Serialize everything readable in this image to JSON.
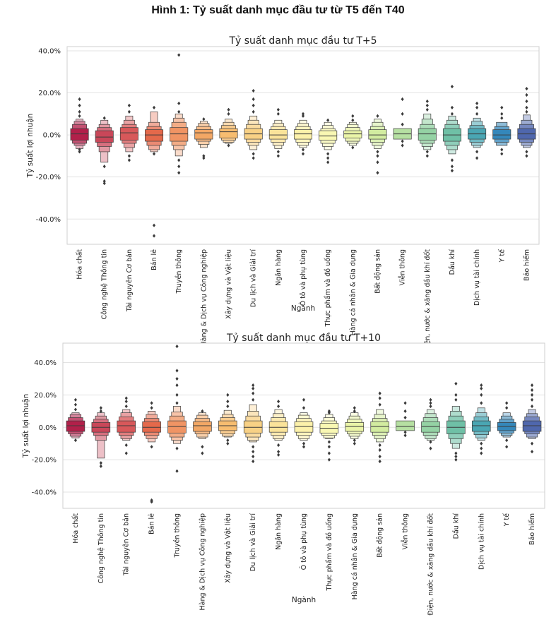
{
  "figure_title": "Hình 1: Tỷ suất danh mục đầu tư từ T5 đến T40",
  "chart_data": [
    {
      "type": "boxen",
      "title": "Tỷ suất danh mục đầu tư T+5",
      "xlabel": "Ngành",
      "ylabel": "Tỷ suất lợi nhuận",
      "ylim": [
        -52,
        42
      ],
      "yticks": [
        -40,
        -20,
        0,
        20,
        40
      ],
      "ytick_labels": [
        "-40.0%",
        "-20.0%",
        "0.0%",
        "20.0%",
        "40.0%"
      ],
      "grid": true,
      "categories": [
        "Hóa chất",
        "Công nghệ Thông tin",
        "Tài nguyên Cơ bản",
        "Bán lẻ",
        "Truyền thông",
        "Hàng & Dịch vụ Công nghiệp",
        "Xây dựng và Vật liệu",
        "Du lịch và Giải trí",
        "Ngân hàng",
        "Ô tô và phụ tùng",
        "Thực phẩm và đồ uống",
        "Hàng cá nhân & Gia dụng",
        "Bất động sản",
        "Viễn thông",
        "Điện, nước & xăng dầu khí đốt",
        "Dầu khí",
        "Dịch vụ tài chính",
        "Y tế",
        "Bảo hiểm"
      ],
      "colors": [
        "#b2204a",
        "#c94759",
        "#d8585a",
        "#e4694b",
        "#f09464",
        "#f3a765",
        "#f7bd70",
        "#f8d185",
        "#fae39a",
        "#fcf1aa",
        "#f9f8b3",
        "#eaf4a7",
        "#d2eca0",
        "#b6e0a2",
        "#94d2a4",
        "#6fc0a6",
        "#4aa6b3",
        "#3487ba",
        "#4f67ad"
      ],
      "stats": [
        {
          "median": 0.5,
          "levels": [
            [
              -2.5,
              3
            ],
            [
              -4,
              5
            ],
            [
              -5,
              6.5
            ],
            [
              -6.5,
              7.5
            ]
          ],
          "outliers": [
            -8,
            -7,
            9,
            11,
            14,
            17
          ]
        },
        {
          "median": -1,
          "levels": [
            [
              -3.5,
              2
            ],
            [
              -5.5,
              3.5
            ],
            [
              -8,
              5
            ],
            [
              -13,
              7
            ]
          ],
          "outliers": [
            -15,
            -22,
            -23,
            8
          ]
        },
        {
          "median": 1,
          "levels": [
            [
              -2.5,
              3.5
            ],
            [
              -4,
              5
            ],
            [
              -6,
              7
            ],
            [
              -8,
              9
            ]
          ],
          "outliers": [
            -10,
            -12,
            11,
            14
          ]
        },
        {
          "median": 0,
          "levels": [
            [
              -3,
              2.5
            ],
            [
              -5,
              4
            ],
            [
              -7,
              6
            ],
            [
              -8,
              11
            ]
          ],
          "outliers": [
            -9,
            -43,
            -48,
            13
          ]
        },
        {
          "median": 0.5,
          "levels": [
            [
              -3,
              3.5
            ],
            [
              -5,
              6
            ],
            [
              -7,
              8
            ],
            [
              -10,
              10
            ]
          ],
          "outliers": [
            -12,
            -15,
            -18,
            11,
            15,
            38
          ]
        },
        {
          "median": 1,
          "levels": [
            [
              -2,
              2.5
            ],
            [
              -3,
              4
            ],
            [
              -4.5,
              5.5
            ],
            [
              -6,
              6.5
            ]
          ],
          "outliers": [
            -10,
            -11,
            7.5
          ]
        },
        {
          "median": 1.5,
          "levels": [
            [
              -1.5,
              3
            ],
            [
              -2.5,
              4.5
            ],
            [
              -3.5,
              6
            ],
            [
              -4,
              7.5
            ]
          ],
          "outliers": [
            -5,
            10,
            12
          ]
        },
        {
          "median": 0.5,
          "levels": [
            [
              -2,
              3
            ],
            [
              -3.5,
              5
            ],
            [
              -5,
              7
            ],
            [
              -7,
              9
            ]
          ],
          "outliers": [
            -9,
            -11,
            11,
            14,
            17,
            21
          ]
        },
        {
          "median": 0,
          "levels": [
            [
              -2,
              2.5
            ],
            [
              -3.5,
              4
            ],
            [
              -5,
              5.5
            ],
            [
              -6.5,
              7
            ]
          ],
          "outliers": [
            -8,
            -10,
            10,
            12
          ]
        },
        {
          "median": 0.5,
          "levels": [
            [
              -2,
              2.5
            ],
            [
              -3.5,
              4
            ],
            [
              -5,
              5.5
            ],
            [
              -6,
              7
            ]
          ],
          "outliers": [
            -7,
            -9,
            9,
            10
          ]
        },
        {
          "median": -0.5,
          "levels": [
            [
              -2.5,
              2
            ],
            [
              -4,
              3
            ],
            [
              -5.5,
              4.5
            ],
            [
              -7,
              6
            ]
          ],
          "outliers": [
            -9,
            -11,
            -13,
            7
          ]
        },
        {
          "median": 0.5,
          "levels": [
            [
              -1.5,
              2
            ],
            [
              -3,
              3.5
            ],
            [
              -4,
              5
            ],
            [
              -5,
              6
            ]
          ],
          "outliers": [
            -6,
            7,
            9
          ]
        },
        {
          "median": 0,
          "levels": [
            [
              -2,
              2.5
            ],
            [
              -3.5,
              4
            ],
            [
              -5,
              6
            ],
            [
              -6.5,
              7.5
            ]
          ],
          "outliers": [
            -8,
            -10,
            -13,
            -18,
            9
          ]
        },
        {
          "median": 0.5,
          "levels": [
            [
              -2,
              3
            ]
          ],
          "outliers": [
            -3,
            -5,
            5,
            10,
            17
          ]
        },
        {
          "median": 0.5,
          "levels": [
            [
              -2.5,
              3
            ],
            [
              -4,
              5
            ],
            [
              -5.5,
              7.5
            ],
            [
              -7,
              10
            ]
          ],
          "outliers": [
            -8,
            -10,
            12,
            14,
            16
          ]
        },
        {
          "median": 0,
          "levels": [
            [
              -3,
              3
            ],
            [
              -5,
              5
            ],
            [
              -7,
              7
            ],
            [
              -9,
              9
            ]
          ],
          "outliers": [
            -12,
            -15,
            -17,
            10,
            13,
            23
          ]
        },
        {
          "median": 0.5,
          "levels": [
            [
              -2,
              3
            ],
            [
              -3.5,
              4.5
            ],
            [
              -5,
              6.5
            ],
            [
              -6,
              8
            ]
          ],
          "outliers": [
            -8,
            -11,
            10,
            13,
            15
          ]
        },
        {
          "median": 0,
          "levels": [
            [
              -2,
              2.5
            ],
            [
              -3.5,
              4
            ],
            [
              -5,
              6
            ]
          ],
          "outliers": [
            -7,
            -9,
            8,
            10,
            13
          ]
        },
        {
          "median": 0.5,
          "levels": [
            [
              -2,
              3
            ],
            [
              -3.5,
              5
            ],
            [
              -5,
              7
            ],
            [
              -6,
              9.5
            ]
          ],
          "outliers": [
            -8,
            -10,
            11,
            13,
            16,
            19,
            22
          ]
        }
      ]
    },
    {
      "type": "boxen",
      "title": "Tỷ suất danh mục đầu tư T+10",
      "xlabel": "Ngành",
      "ylabel": "Tỷ suất lợi nhuận",
      "ylim": [
        -50,
        52
      ],
      "yticks": [
        -40,
        -20,
        0,
        20,
        40
      ],
      "ytick_labels": [
        "-40.0%",
        "-20.0%",
        "0.0%",
        "20.0%",
        "40.0%"
      ],
      "grid": true,
      "categories": [
        "Hóa chất",
        "Công nghệ Thông tin",
        "Tài nguyên Cơ bản",
        "Bán lẻ",
        "Truyền thông",
        "Hàng & Dịch vụ Công nghiệp",
        "Xây dựng và Vật liệu",
        "Du lịch và Giải trí",
        "Ngân hàng",
        "Ô tô và phụ tùng",
        "Thực phẩm và đồ uống",
        "Hàng cá nhân & Gia dụng",
        "Bất động sản",
        "Viễn thông",
        "Điện, nước & xăng dầu khí đốt",
        "Dầu khí",
        "Dịch vụ tài chính",
        "Y tế",
        "Bảo hiểm"
      ],
      "colors": [
        "#b2204a",
        "#c94759",
        "#d8585a",
        "#e4694b",
        "#f09464",
        "#f3a765",
        "#f7bd70",
        "#f8d185",
        "#fae39a",
        "#fcf1aa",
        "#f9f8b3",
        "#eaf4a7",
        "#d2eca0",
        "#b6e0a2",
        "#94d2a4",
        "#6fc0a6",
        "#4aa6b3",
        "#3487ba",
        "#4f67ad"
      ],
      "stats": [
        {
          "median": 1,
          "levels": [
            [
              -2.5,
              4
            ],
            [
              -4,
              6
            ],
            [
              -5.5,
              8
            ],
            [
              -6.5,
              9
            ]
          ],
          "outliers": [
            -8,
            11,
            14,
            17
          ]
        },
        {
          "median": 0,
          "levels": [
            [
              -3,
              3
            ],
            [
              -5,
              5
            ],
            [
              -8,
              7
            ],
            [
              -19,
              9
            ]
          ],
          "outliers": [
            -22,
            -24,
            10,
            12
          ]
        },
        {
          "median": 1,
          "levels": [
            [
              -3,
              4
            ],
            [
              -5,
              6.5
            ],
            [
              -7,
              9
            ],
            [
              -8,
              11
            ]
          ],
          "outliers": [
            -11,
            -16,
            13,
            16,
            18
          ]
        },
        {
          "median": 0,
          "levels": [
            [
              -3,
              3.5
            ],
            [
              -5,
              5.5
            ],
            [
              -7,
              8
            ],
            [
              -9,
              10
            ]
          ],
          "outliers": [
            -12,
            -45,
            -46,
            12,
            15
          ]
        },
        {
          "median": 0.5,
          "levels": [
            [
              -3.5,
              4
            ],
            [
              -6,
              7
            ],
            [
              -8,
              9.5
            ],
            [
              -10,
              13
            ]
          ],
          "outliers": [
            -13,
            -27,
            15,
            20,
            26,
            30,
            35,
            50
          ]
        },
        {
          "median": 1,
          "levels": [
            [
              -2.5,
              3.5
            ],
            [
              -4,
              5.5
            ],
            [
              -6,
              7.5
            ],
            [
              -7,
              9
            ]
          ],
          "outliers": [
            -12,
            -16,
            10
          ]
        },
        {
          "median": 1,
          "levels": [
            [
              -2,
              4
            ],
            [
              -4,
              6
            ],
            [
              -5.5,
              8
            ],
            [
              -6,
              10.5
            ]
          ],
          "outliers": [
            -8,
            -10,
            13,
            16,
            20
          ]
        },
        {
          "median": 0,
          "levels": [
            [
              -3.5,
              4
            ],
            [
              -6,
              7
            ],
            [
              -8,
              10
            ],
            [
              -9,
              14
            ]
          ],
          "outliers": [
            -12,
            -15,
            -18,
            -21,
            17,
            21,
            24,
            26
          ]
        },
        {
          "median": 0,
          "levels": [
            [
              -3,
              3.5
            ],
            [
              -5,
              6
            ],
            [
              -7,
              8.5
            ],
            [
              -8,
              11
            ]
          ],
          "outliers": [
            -11,
            -15,
            -17,
            13,
            16
          ]
        },
        {
          "median": 0.5,
          "levels": [
            [
              -3,
              3.5
            ],
            [
              -5,
              5.5
            ],
            [
              -7,
              7.5
            ],
            [
              -8,
              9
            ]
          ],
          "outliers": [
            -10,
            -12,
            12,
            17
          ]
        },
        {
          "median": -0.5,
          "levels": [
            [
              -3.5,
              2.5
            ],
            [
              -5,
              4
            ],
            [
              -6.5,
              6
            ],
            [
              -7,
              8
            ]
          ],
          "outliers": [
            -9,
            -12,
            -16,
            -20,
            9,
            10
          ]
        },
        {
          "median": 0.5,
          "levels": [
            [
              -2.5,
              3
            ],
            [
              -4,
              5
            ],
            [
              -5.5,
              7
            ],
            [
              -7,
              9
            ]
          ],
          "outliers": [
            -8,
            -10,
            10,
            12
          ]
        },
        {
          "median": 0.5,
          "levels": [
            [
              -3,
              3.5
            ],
            [
              -5,
              5.5
            ],
            [
              -7,
              8
            ],
            [
              -9,
              11
            ]
          ],
          "outliers": [
            -11,
            -14,
            -18,
            -21,
            14,
            18,
            21
          ]
        },
        {
          "median": 0.5,
          "levels": [
            [
              -2,
              4
            ]
          ],
          "outliers": [
            -3,
            -5,
            6,
            10,
            15
          ]
        },
        {
          "median": 0.5,
          "levels": [
            [
              -3,
              3.5
            ],
            [
              -5,
              6
            ],
            [
              -7,
              8.5
            ],
            [
              -8,
              11
            ]
          ],
          "outliers": [
            -9,
            -13,
            13,
            15,
            17
          ]
        },
        {
          "median": 0,
          "levels": [
            [
              -4,
              4
            ],
            [
              -7,
              7
            ],
            [
              -10,
              10
            ],
            [
              -13,
              13
            ]
          ],
          "outliers": [
            -16,
            -18,
            -20,
            17,
            20,
            27
          ]
        },
        {
          "median": 1,
          "levels": [
            [
              -2.5,
              4
            ],
            [
              -4.5,
              6.5
            ],
            [
              -6.5,
              9
            ],
            [
              -8,
              12
            ]
          ],
          "outliers": [
            -10,
            -13,
            -16,
            15,
            20,
            24,
            26
          ]
        },
        {
          "median": 0.5,
          "levels": [
            [
              -2,
              3
            ],
            [
              -3.5,
              5
            ],
            [
              -5,
              7
            ],
            [
              -6,
              9
            ]
          ],
          "outliers": [
            -8,
            -12,
            12,
            15
          ]
        },
        {
          "median": 1,
          "levels": [
            [
              -2.5,
              4
            ],
            [
              -4,
              6.5
            ],
            [
              -6,
              8.5
            ],
            [
              -7,
              11
            ]
          ],
          "outliers": [
            -10,
            -15,
            13,
            17,
            20,
            23,
            26
          ]
        }
      ]
    }
  ]
}
